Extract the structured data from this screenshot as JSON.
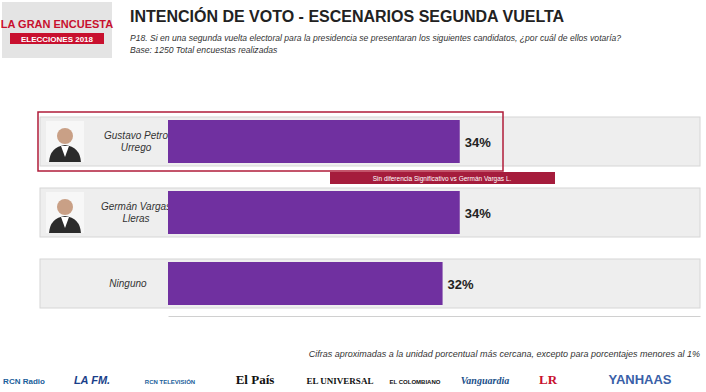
{
  "header": {
    "logo": [
      "LA GRAN ENCUESTA",
      "ELECCIONES 2018"
    ],
    "base": "Base: 1250 Total encuestas realizadas"
  },
  "chart_data": {
    "type": "bar",
    "orientation": "horizontal",
    "title": "INTENCIÓN DE VOTO - ESCENARIOS SEGUNDA VUELTA",
    "subtitle": "P18. Si en una segunda vuelta electoral para la presidencia se presentaran los siguientes candidatos, ¿por cuál de ellos votaría?",
    "categories": [
      "Gustavo Petro Urrego",
      "Germán Vargas Lleras",
      "Ninguno"
    ],
    "values": [
      34,
      34,
      32
    ],
    "value_labels": [
      "34%",
      "34%",
      "32%"
    ],
    "data_labels": true,
    "color": "#7030a0",
    "xlim": [
      0,
      62
    ],
    "tick_labels": false,
    "grid": false,
    "annotations": [
      "Sin diferencia Significativo vs Germán Vargas L."
    ]
  },
  "footer": {
    "note": "Cifras aproximadas a la unidad porcentual más cercana, excepto para porcentajes menores al 1%",
    "logos": [
      "RCN Radio",
      "LA FM.",
      "RCN TELEVISIÓN",
      "El País",
      "EL UNIVERSAL",
      "EL COLOMBIANO",
      "Vanguardia",
      "LR",
      "YANHAAS"
    ]
  }
}
